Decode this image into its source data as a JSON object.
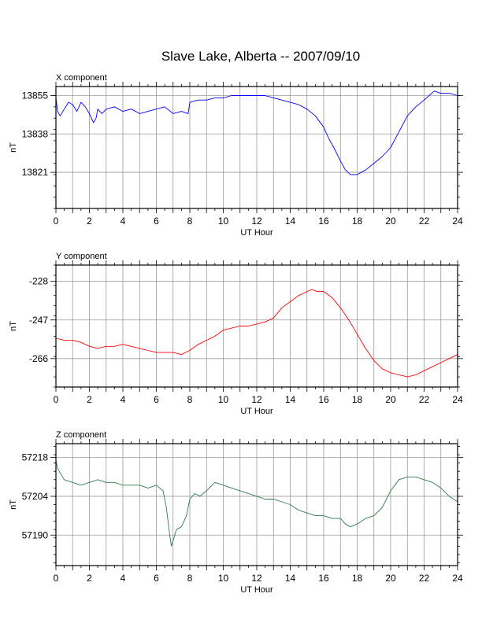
{
  "title": "Slave Lake, Alberta -- 2007/09/10",
  "chart_data": [
    {
      "type": "line",
      "component_label": "X component",
      "xlabel": "UT Hour",
      "ylabel": "nT",
      "xlim": [
        0,
        24
      ],
      "ylim": [
        13805,
        13859
      ],
      "xticks": [
        0,
        2,
        4,
        6,
        8,
        10,
        12,
        14,
        16,
        18,
        20,
        22,
        24
      ],
      "yticks": [
        13821,
        13838,
        13855
      ],
      "grid": true,
      "color": "#0000ff",
      "series": [
        {
          "x": [
            0,
            0.1,
            0.25,
            0.5,
            0.75,
            1,
            1.25,
            1.5,
            1.75,
            2,
            2.25,
            2.4,
            2.5,
            2.75,
            3,
            3.5,
            4,
            4.5,
            5,
            5.5,
            6,
            6.5,
            7,
            7.5,
            7.9,
            8,
            8.5,
            9,
            9.5,
            10,
            10.5,
            11,
            11.5,
            12,
            12.5,
            13,
            13.5,
            14,
            14.5,
            15,
            15.5,
            16,
            16.3,
            16.6,
            17,
            17.3,
            17.6,
            18,
            18.5,
            19,
            19.5,
            20,
            20.5,
            21,
            21.5,
            22,
            22.3,
            22.6,
            23,
            23.5,
            24
          ],
          "y": [
            13854,
            13848,
            13846,
            13849,
            13852,
            13851,
            13848,
            13852,
            13850,
            13847,
            13843,
            13845,
            13849,
            13847,
            13849,
            13850,
            13848,
            13849,
            13847,
            13848,
            13849,
            13850,
            13847,
            13848,
            13847,
            13852,
            13853,
            13853,
            13854,
            13854,
            13855,
            13855,
            13855,
            13855,
            13855,
            13854,
            13853,
            13852,
            13851,
            13849,
            13846,
            13841,
            13836,
            13832,
            13826,
            13822,
            13820,
            13820,
            13822,
            13825,
            13828,
            13832,
            13839,
            13846,
            13850,
            13853,
            13855,
            13857,
            13856,
            13856,
            13855
          ]
        }
      ]
    },
    {
      "type": "line",
      "component_label": "Y component",
      "xlabel": "UT Hour",
      "ylabel": "nT",
      "xlim": [
        0,
        24
      ],
      "ylim": [
        -280,
        -220
      ],
      "xticks": [
        0,
        2,
        4,
        6,
        8,
        10,
        12,
        14,
        16,
        18,
        20,
        22,
        24
      ],
      "yticks": [
        -228,
        -247,
        -266
      ],
      "grid": true,
      "color": "#ff0000",
      "series": [
        {
          "x": [
            0,
            0.5,
            1,
            1.5,
            2,
            2.5,
            3,
            3.5,
            4,
            4.5,
            5,
            5.5,
            6,
            6.5,
            7,
            7.5,
            8,
            8.5,
            9,
            9.5,
            10,
            10.5,
            11,
            11.5,
            12,
            12.5,
            13,
            13.5,
            14,
            14.5,
            15,
            15.3,
            15.6,
            16,
            16.5,
            17,
            17.5,
            18,
            18.5,
            19,
            19.5,
            20,
            20.5,
            21,
            21.5,
            22,
            22.5,
            23,
            23.5,
            24
          ],
          "y": [
            -256,
            -257,
            -257,
            -258,
            -260,
            -261,
            -260,
            -260,
            -259,
            -260,
            -261,
            -262,
            -263,
            -263,
            -263,
            -264,
            -262,
            -259,
            -257,
            -255,
            -252,
            -251,
            -250,
            -250,
            -249,
            -248,
            -246,
            -241,
            -238,
            -235,
            -233,
            -232,
            -233,
            -233,
            -236,
            -241,
            -247,
            -254,
            -261,
            -267,
            -271,
            -273,
            -274,
            -275,
            -274,
            -272,
            -270,
            -268,
            -266,
            -264
          ]
        }
      ]
    },
    {
      "type": "line",
      "component_label": "Z component",
      "xlabel": "UT Hour",
      "ylabel": "nT",
      "xlim": [
        0,
        24
      ],
      "ylim": [
        57179,
        57223
      ],
      "xticks": [
        0,
        2,
        4,
        6,
        8,
        10,
        12,
        14,
        16,
        18,
        20,
        22,
        24
      ],
      "yticks": [
        57190,
        57204,
        57218
      ],
      "grid": true,
      "color": "#2e7d4a",
      "series": [
        {
          "x": [
            0,
            0.1,
            0.3,
            0.5,
            1,
            1.5,
            2,
            2.5,
            3,
            3.5,
            4,
            4.5,
            5,
            5.5,
            6,
            6.4,
            6.6,
            6.8,
            6.9,
            7,
            7.2,
            7.5,
            7.8,
            8,
            8.3,
            8.6,
            9,
            9.5,
            10,
            10.5,
            11,
            11.5,
            12,
            12.5,
            13,
            13.5,
            14,
            14.5,
            15,
            15.5,
            16,
            16.5,
            17,
            17.3,
            17.6,
            18,
            18.5,
            19,
            19.5,
            20,
            20.5,
            21,
            21.5,
            22,
            22.5,
            23,
            23.5,
            24
          ],
          "y": [
            57217,
            57214,
            57212,
            57210,
            57209,
            57208,
            57209,
            57210,
            57209,
            57209,
            57208,
            57208,
            57208,
            57207,
            57208,
            57206,
            57200,
            57190,
            57186,
            57188,
            57192,
            57193,
            57197,
            57203,
            57205,
            57204,
            57206,
            57209,
            57208,
            57207,
            57206,
            57205,
            57204,
            57203,
            57203,
            57202,
            57201,
            57199,
            57198,
            57197,
            57197,
            57196,
            57196,
            57194,
            57193,
            57194,
            57196,
            57197,
            57200,
            57206,
            57210,
            57211,
            57211,
            57210,
            57209,
            57207,
            57204,
            57202
          ]
        }
      ]
    }
  ]
}
